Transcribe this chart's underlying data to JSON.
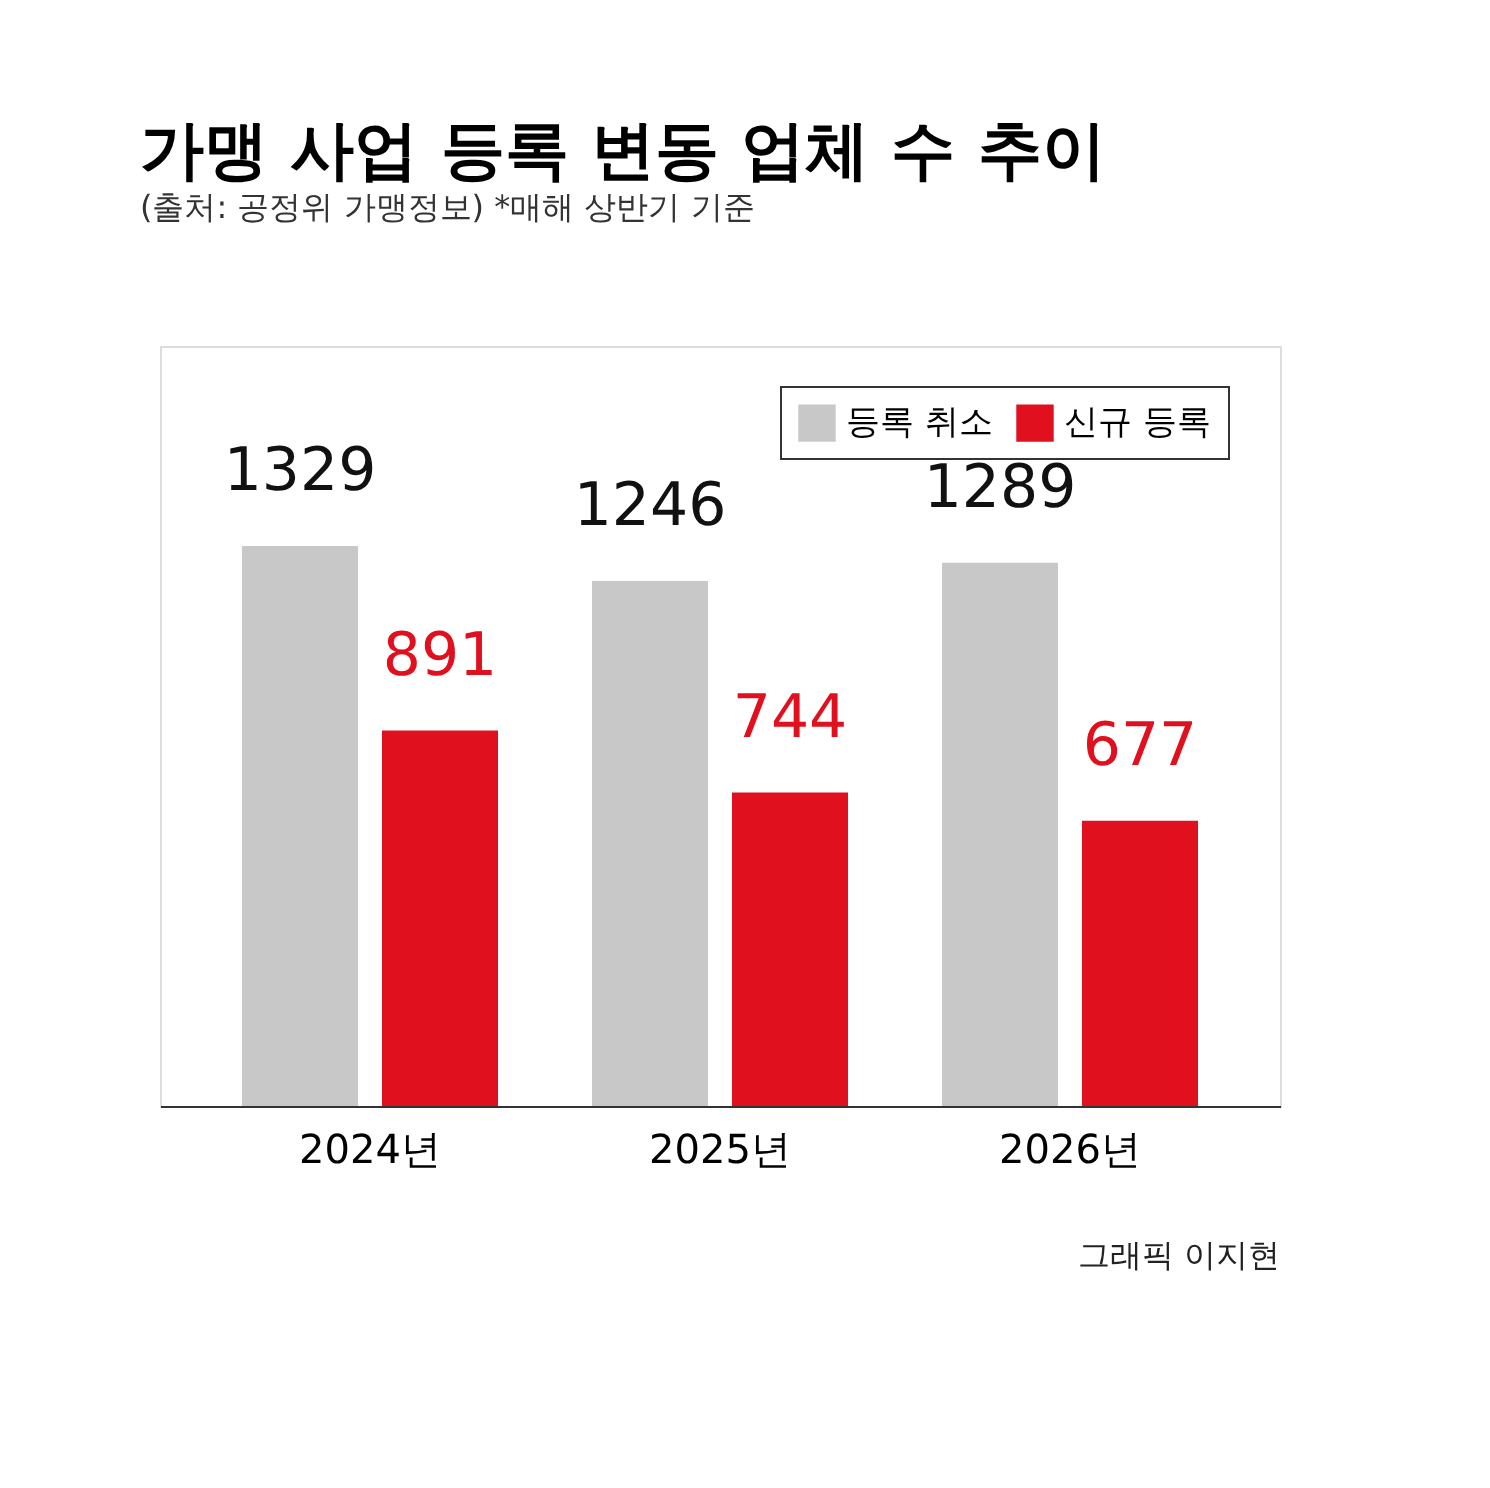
{
  "chart_data": {
    "type": "bar",
    "title": "가맹 사업 등록 변동 업체 수 추이",
    "subtitle": "(출처: 공정위 가맹정보)  *매해 상반기 기준",
    "categories": [
      "2024년",
      "2025년",
      "2026년"
    ],
    "series": [
      {
        "name": "등록 취소",
        "color": "#c8c8c8",
        "values": [
          1329,
          1246,
          1289
        ]
      },
      {
        "name": "신규 등록",
        "color": "#e0101e",
        "values": [
          891,
          744,
          677
        ]
      }
    ],
    "data_labels": true,
    "legend": "top right",
    "grid": false,
    "annotations": [
      "그래픽 이지현"
    ]
  }
}
